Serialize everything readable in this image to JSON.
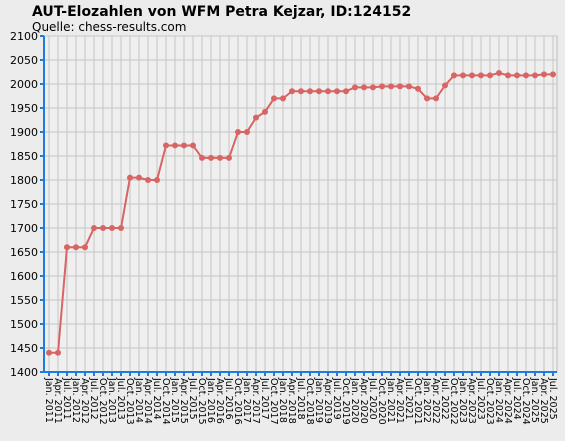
{
  "chart_data": {
    "type": "line",
    "title": "AUT-Elozahlen von WFM Petra Kejzar, ID:124152",
    "subtitle": "Quelle: chess-results.com",
    "categories": [
      "Jan. 2011",
      "Apr. 2011",
      "Jul. 2011",
      "Jan. 2012",
      "Apr. 2012",
      "Jul. 2012",
      "Oct. 2012",
      "Jan. 2013",
      "Jul. 2013",
      "Oct. 2013",
      "Jan. 2014",
      "Apr. 2014",
      "Jul. 2014",
      "Oct. 2014",
      "Jan. 2015",
      "Apr. 2015",
      "Jul. 2015",
      "Oct. 2015",
      "Jan. 2016",
      "Apr. 2016",
      "Jul. 2016",
      "Oct. 2016",
      "Jan. 2017",
      "Apr. 2017",
      "Jul. 2017",
      "Oct. 2017",
      "Jan. 2018",
      "Apr. 2018",
      "Jul. 2018",
      "Oct. 2018",
      "Jan. 2019",
      "Apr. 2019",
      "Jul. 2019",
      "Oct. 2019",
      "Jan. 2020",
      "Apr. 2020",
      "Jul. 2020",
      "Oct. 2020",
      "Jan. 2021",
      "Apr. 2021",
      "Jul. 2021",
      "Oct. 2021",
      "Jan. 2022",
      "Apr. 2022",
      "Jul. 2022",
      "Oct. 2022",
      "Jan. 2023",
      "Apr. 2023",
      "Jul. 2023",
      "Oct. 2023",
      "Jan. 2024",
      "Apr. 2024",
      "Jul. 2024",
      "Oct. 2024",
      "Jan. 2025",
      "Apr. 2025",
      "Jul. 2025"
    ],
    "values": [
      1440,
      1440,
      1660,
      1660,
      1660,
      1700,
      1700,
      1700,
      1700,
      1805,
      1805,
      1800,
      1800,
      1872,
      1872,
      1872,
      1872,
      1846,
      1846,
      1846,
      1846,
      1900,
      1900,
      1930,
      1942,
      1970,
      1970,
      1985,
      1985,
      1985,
      1985,
      1985,
      1985,
      1985,
      1993,
      1993,
      1993,
      1995,
      1995,
      1995,
      1995,
      1990,
      1970,
      1970,
      1997,
      2018,
      2018,
      2018,
      2018,
      2018,
      2023,
      2018,
      2018,
      2018,
      2018,
      2020,
      2020
    ],
    "color": "#d96464",
    "ylim": [
      1400,
      2100
    ],
    "yticks": [
      1400,
      1450,
      1500,
      1550,
      1600,
      1650,
      1700,
      1750,
      1800,
      1850,
      1900,
      1950,
      2000,
      2050,
      2100
    ],
    "grid": true
  }
}
